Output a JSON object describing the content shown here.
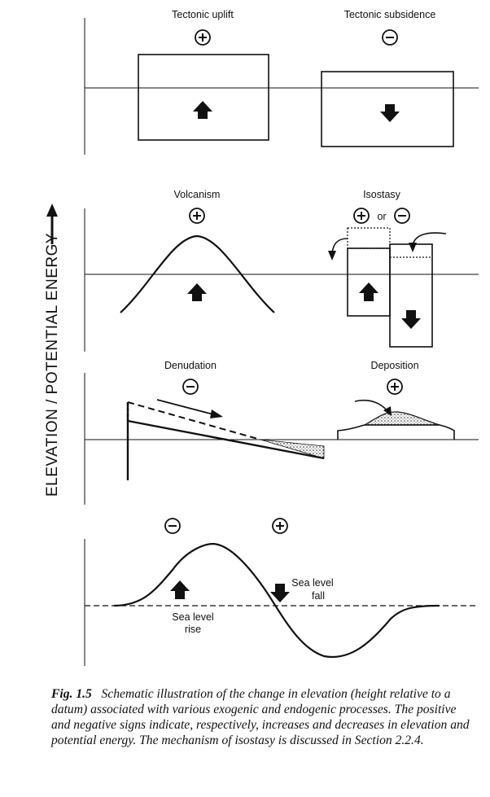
{
  "y_axis_label": "ELEVATION / POTENTIAL ENERGY",
  "panels": {
    "tectonic": {
      "uplift_label": "Tectonic uplift",
      "uplift_sign": "+",
      "subsidence_label": "Tectonic subsidence",
      "subsidence_sign": "−"
    },
    "volcanism_isostasy": {
      "volcanism_label": "Volcanism",
      "volcanism_sign": "+",
      "isostasy_label": "Isostasy",
      "isostasy_sign_plus": "+",
      "isostasy_or": "or",
      "isostasy_sign_minus": "−"
    },
    "denudation_deposition": {
      "denudation_label": "Denudation",
      "denudation_sign": "−",
      "deposition_label": "Deposition",
      "deposition_sign": "+"
    },
    "sea_level": {
      "sign_left": "−",
      "sign_right": "+",
      "fall_label_line1": "Sea level",
      "fall_label_line2": "fall",
      "rise_label_line1": "Sea level",
      "rise_label_line2": "rise"
    }
  },
  "caption": {
    "figure_number": "Fig. 1.5",
    "text": "Schematic illustration of the change in elevation (height relative to a datum) associated with various exogenic and endogenic processes. The positive and negative signs indicate, respectively, increases and decreases in elevation and potential energy. The mechanism of isostasy is discussed in Section 2.2.4."
  }
}
